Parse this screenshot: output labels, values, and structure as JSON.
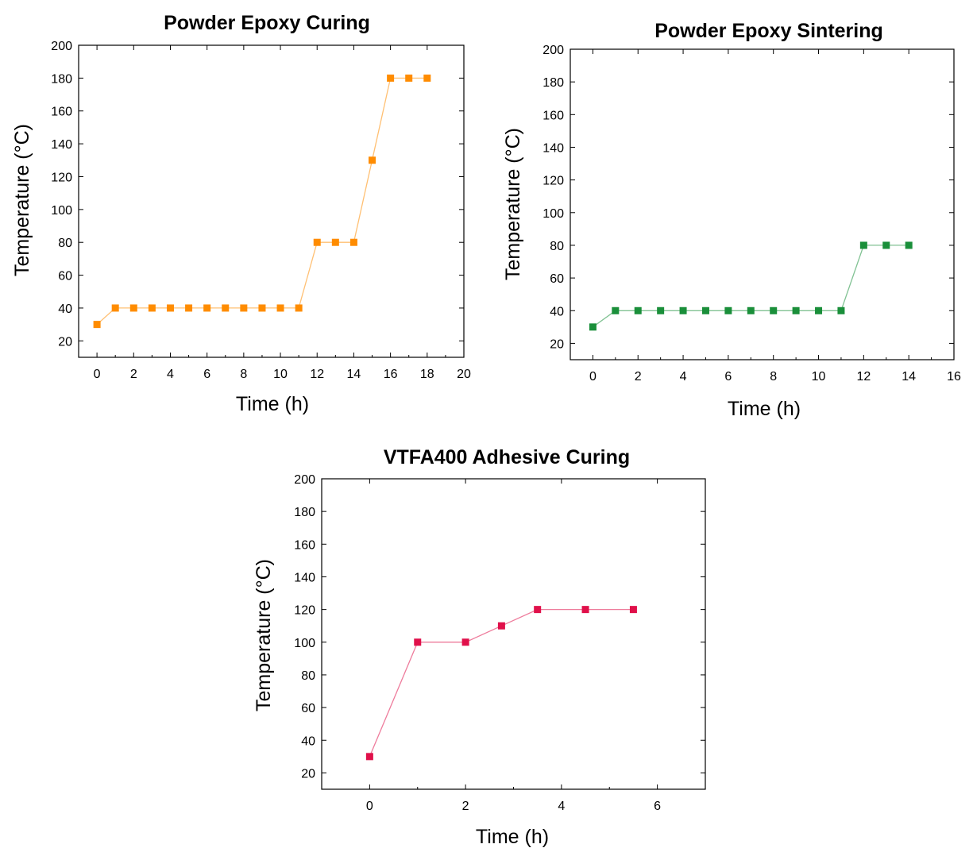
{
  "charts": [
    {
      "title": "Powder Epoxy Curing",
      "xlabel": "Time (h)",
      "ylabel": "Temperature (°C)",
      "color": "#ff8c00",
      "chart_data": {
        "type": "line",
        "x": [
          0,
          1,
          2,
          3,
          4,
          5,
          6,
          7,
          8,
          9,
          10,
          11,
          12,
          13,
          14,
          15,
          16,
          17,
          18
        ],
        "y": [
          30,
          40,
          40,
          40,
          40,
          40,
          40,
          40,
          40,
          40,
          40,
          40,
          80,
          80,
          80,
          130,
          180,
          180,
          180
        ],
        "xlim": [
          -1,
          20
        ],
        "ylim": [
          10,
          200
        ],
        "xticks": [
          "0",
          "2",
          "4",
          "6",
          "8",
          "10",
          "12",
          "14",
          "16",
          "18",
          "20"
        ],
        "yticks": [
          "20",
          "40",
          "60",
          "80",
          "100",
          "120",
          "140",
          "160",
          "180",
          "200"
        ]
      }
    },
    {
      "title": "Powder Epoxy Sintering",
      "xlabel": "Time (h)",
      "ylabel": "Temperature (°C)",
      "color": "#1a8f3a",
      "chart_data": {
        "type": "line",
        "x": [
          0,
          1,
          2,
          3,
          4,
          5,
          6,
          7,
          8,
          9,
          10,
          11,
          12,
          13,
          14
        ],
        "y": [
          30,
          40,
          40,
          40,
          40,
          40,
          40,
          40,
          40,
          40,
          40,
          40,
          80,
          80,
          80
        ],
        "xlim": [
          -1,
          16
        ],
        "ylim": [
          10,
          200
        ],
        "xticks": [
          "0",
          "2",
          "4",
          "6",
          "8",
          "10",
          "12",
          "14",
          "16"
        ],
        "yticks": [
          "20",
          "40",
          "60",
          "80",
          "100",
          "120",
          "140",
          "160",
          "180",
          "200"
        ]
      }
    },
    {
      "title": "VTFA400 Adhesive Curing",
      "xlabel": "Time (h)",
      "ylabel": "Temperature (°C)",
      "color": "#e0104a",
      "chart_data": {
        "type": "line",
        "x": [
          0,
          1,
          2,
          2.75,
          3.5,
          4.5,
          5.5
        ],
        "y": [
          30,
          100,
          100,
          110,
          120,
          120,
          120
        ],
        "xlim": [
          -1,
          7
        ],
        "ylim": [
          10,
          200
        ],
        "xticks": [
          "0",
          "2",
          "4",
          "6"
        ],
        "yticks": [
          "20",
          "40",
          "60",
          "80",
          "100",
          "120",
          "140",
          "160",
          "180",
          "200"
        ]
      }
    }
  ]
}
